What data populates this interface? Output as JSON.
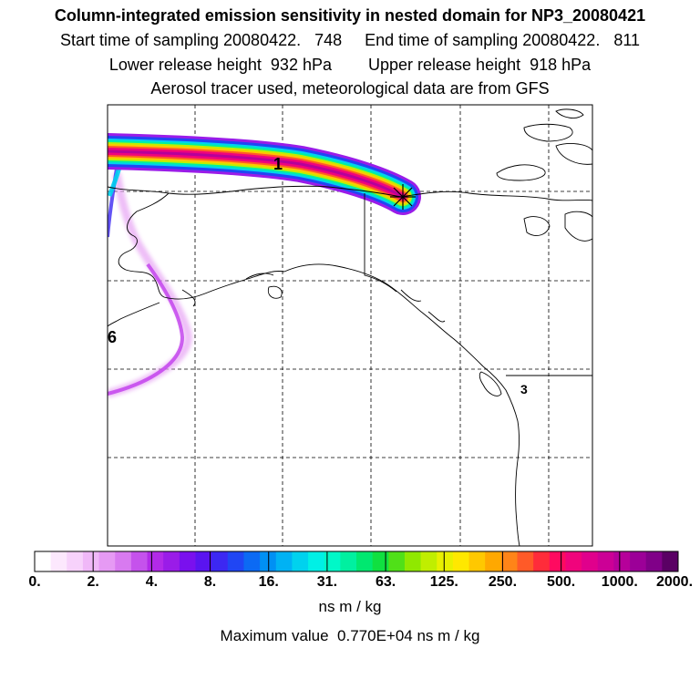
{
  "header": {
    "title": "Column-integrated emission sensitivity in nested domain for NP3_20080421",
    "sampling_line": "Start time of sampling 20080422.   748     End time of sampling 20080422.   811",
    "release_line": "Lower release height  932 hPa        Upper release height  918 hPa",
    "tracer_line": "Aerosol tracer used, meteorological data are from GFS"
  },
  "map": {
    "region": "Alaska and northwestern North America",
    "plume_labels": [
      "1",
      "6",
      "3"
    ],
    "release_marker": "asterisk-icon"
  },
  "colorbar": {
    "tick_labels": [
      "0.",
      "2.",
      "4.",
      "8.",
      "16.",
      "31.",
      "63.",
      "125.",
      "250.",
      "500.",
      "1000.",
      "2000."
    ],
    "colors": [
      "#ffffff",
      "#fce8fd",
      "#f7d2fb",
      "#f0b8f8",
      "#e69af4",
      "#d87af0",
      "#c552ec",
      "#b22ae8",
      "#9a1ce8",
      "#7a10ee",
      "#5a14f0",
      "#3c28f2",
      "#2046f4",
      "#0c6af4",
      "#0090f4",
      "#00b2f4",
      "#00d2ee",
      "#00f0e6",
      "#00f8c8",
      "#00f0a0",
      "#00e870",
      "#10e040",
      "#50e018",
      "#90e800",
      "#c0ee00",
      "#e8f000",
      "#ffe800",
      "#ffc800",
      "#ffa800",
      "#ff8418",
      "#ff5a28",
      "#ff2c3a",
      "#ff0a60",
      "#f0047c",
      "#e0008c",
      "#cc0096",
      "#b6009a",
      "#9c0098",
      "#800088",
      "#5a0064"
    ],
    "unit": "ns m / kg"
  },
  "footer": {
    "max_value": "Maximum value  0.770E+04 ns m / kg"
  }
}
